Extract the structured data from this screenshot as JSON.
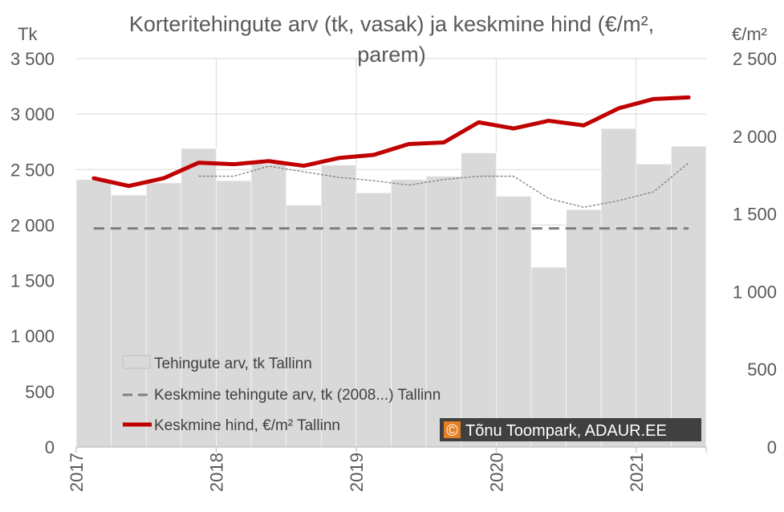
{
  "chart_data": {
    "type": "bar",
    "title_line1": "Korteritehingute arv (tk, vasak) ja keskmine hind (€/m²,",
    "title_line2": "parem)",
    "y_left_label": "Tk",
    "y_right_label": "€/m²",
    "ylim_left": [
      0,
      3500
    ],
    "ylim_right": [
      0,
      2500
    ],
    "y_left_ticks": [
      {
        "value": 0,
        "label": "0"
      },
      {
        "value": 500,
        "label": "500"
      },
      {
        "value": 1000,
        "label": "1 000"
      },
      {
        "value": 1500,
        "label": "1 500"
      },
      {
        "value": 2000,
        "label": "2 000"
      },
      {
        "value": 2500,
        "label": "2 500"
      },
      {
        "value": 3000,
        "label": "3 000"
      },
      {
        "value": 3500,
        "label": "3 500"
      }
    ],
    "y_right_ticks": [
      {
        "value": 0,
        "label": "0"
      },
      {
        "value": 500,
        "label": "500"
      },
      {
        "value": 1000,
        "label": "1 000"
      },
      {
        "value": 1500,
        "label": "1 500"
      },
      {
        "value": 2000,
        "label": "2 000"
      },
      {
        "value": 2500,
        "label": "2 500"
      }
    ],
    "x_year_labels": [
      {
        "label": "2017",
        "start_index": 0
      },
      {
        "label": "2018",
        "start_index": 4
      },
      {
        "label": "2019",
        "start_index": 8
      },
      {
        "label": "2020",
        "start_index": 12
      },
      {
        "label": "2021",
        "start_index": 16
      }
    ],
    "quarters": 18,
    "series": [
      {
        "name": "Tehingute arv, tk Tallinn",
        "kind": "bar",
        "axis": "left",
        "color": "#d9d9d9",
        "values": [
          2410,
          2270,
          2380,
          2690,
          2400,
          2550,
          2180,
          2540,
          2290,
          2410,
          2440,
          2650,
          2260,
          1620,
          2140,
          2870,
          2550,
          2710
        ]
      },
      {
        "name": "Keskmine tehingute arv, tk (2008...) Tallinn",
        "kind": "line-dashed",
        "axis": "left",
        "color": "#7f7f7f",
        "values": [
          1970,
          1970,
          1970,
          1970,
          1970,
          1970,
          1970,
          1970,
          1970,
          1970,
          1970,
          1970,
          1970,
          1970,
          1970,
          1970,
          1970,
          1970
        ]
      },
      {
        "kind": "line-dotted",
        "axis": "left",
        "color": "#7f7f7f",
        "values": [
          null,
          null,
          null,
          2440,
          2440,
          2530,
          2480,
          2430,
          2400,
          2360,
          2410,
          2440,
          2440,
          2240,
          2160,
          2220,
          2300,
          2560
        ]
      },
      {
        "name": "Keskmine hind, €/m² Tallinn",
        "kind": "line",
        "axis": "right",
        "color": "#c00000",
        "values": [
          1730,
          1680,
          1730,
          1830,
          1820,
          1840,
          1810,
          1860,
          1880,
          1950,
          1960,
          2090,
          2050,
          2100,
          2070,
          2180,
          2240,
          2250
        ]
      }
    ],
    "legend_position": "bottom-left, inside plot",
    "credit": {
      "symbol": "©",
      "text": "Tõnu Toompark, ADAUR.EE",
      "color": "#e67e22"
    }
  }
}
